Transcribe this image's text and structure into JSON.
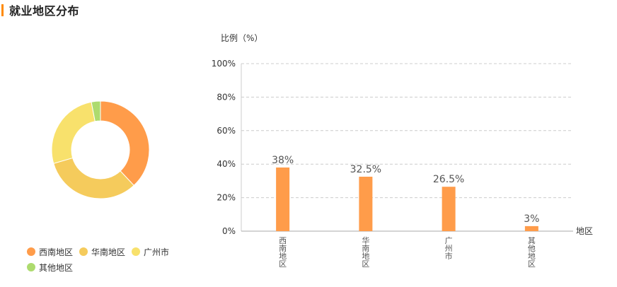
{
  "page": {
    "title": "就业地区分布",
    "accent_color": "#ff8a00"
  },
  "chart_data": [
    {
      "type": "pie",
      "style": "donut",
      "categories": [
        "西南地区",
        "华南地区",
        "广州市",
        "其他地区"
      ],
      "values": [
        38,
        32.5,
        26.5,
        3
      ],
      "colors": [
        "#ff9c4a",
        "#f5cb5c",
        "#f8e16c",
        "#addb6e"
      ],
      "legend": "bottom-left"
    },
    {
      "type": "bar",
      "categories": [
        "西南地区",
        "华南地区",
        "广州市",
        "其他地区"
      ],
      "values": [
        38,
        32.5,
        26.5,
        3
      ],
      "data_labels": [
        "38%",
        "32.5%",
        "26.5%",
        "3%"
      ],
      "ylabel": "比例（%）",
      "xlabel": "地区",
      "ylim": [
        0,
        100
      ],
      "yticks": [
        0,
        20,
        40,
        60,
        80,
        100
      ],
      "ytick_labels": [
        "0%",
        "20%",
        "40%",
        "60%",
        "80%",
        "100%"
      ],
      "grid": true,
      "bar_color": "#ff9c4a"
    }
  ]
}
